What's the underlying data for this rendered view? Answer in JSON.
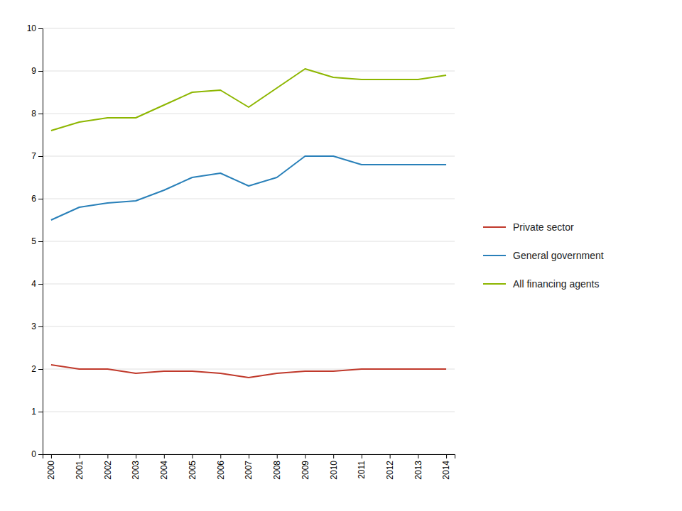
{
  "chart_data": {
    "type": "line",
    "x": [
      2000,
      2001,
      2002,
      2003,
      2004,
      2005,
      2006,
      2007,
      2008,
      2009,
      2010,
      2011,
      2012,
      2013,
      2014
    ],
    "series": [
      {
        "name": "Private sector",
        "color": "#c0392b",
        "values": [
          2.1,
          2.0,
          2.0,
          1.9,
          1.95,
          1.95,
          1.9,
          1.8,
          1.9,
          1.95,
          1.95,
          2.0,
          2.0,
          2.0,
          2.0
        ]
      },
      {
        "name": "General government",
        "color": "#2980b9",
        "values": [
          5.5,
          5.8,
          5.9,
          5.95,
          6.2,
          6.5,
          6.6,
          6.3,
          6.5,
          7.0,
          7.0,
          6.8,
          6.8,
          6.8,
          6.8
        ]
      },
      {
        "name": "All financing agents",
        "color": "#8db600",
        "values": [
          7.6,
          7.8,
          7.9,
          7.9,
          8.2,
          8.5,
          8.55,
          8.15,
          8.6,
          9.05,
          8.85,
          8.8,
          8.8,
          8.8,
          8.9
        ]
      }
    ],
    "xlim": [
      1999.7,
      2014.3
    ],
    "xticks": [
      2000,
      2001,
      2002,
      2003,
      2004,
      2005,
      2006,
      2007,
      2008,
      2009,
      2010,
      2011,
      2012,
      2013,
      2014
    ],
    "ylim": [
      0,
      10
    ],
    "yticks": [
      0,
      1,
      2,
      3,
      4,
      5,
      6,
      7,
      8,
      9,
      10
    ],
    "grid": true,
    "legend": "right"
  }
}
